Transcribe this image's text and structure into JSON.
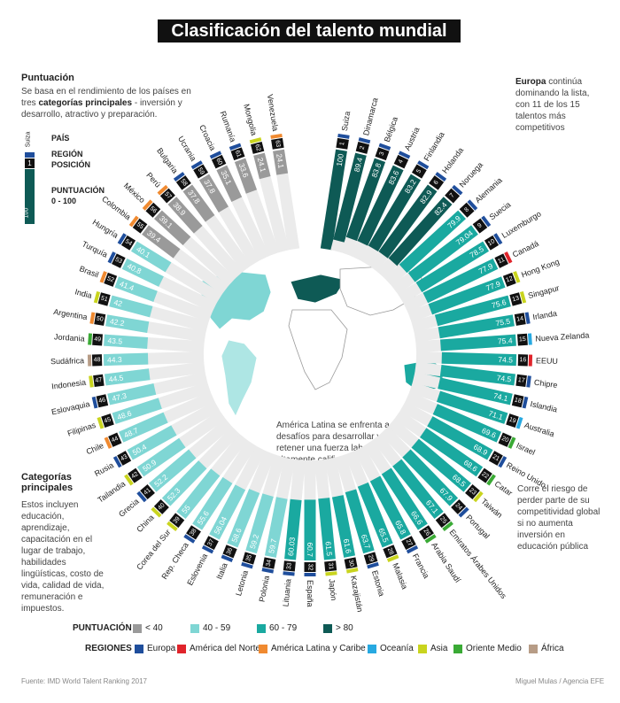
{
  "title": "Clasificación del talento mundial",
  "intro": {
    "heading": "Puntuación",
    "text_a": "Se basa en el rendimiento de los países en tres",
    "text_b": "categorías principales",
    "text_c": "- inversión y desarrollo, atractivo y preparación."
  },
  "key": {
    "country": "Suiza",
    "pais_label": "PAÍS",
    "region_label": "REGIÓN",
    "position": "1",
    "position_label": "POSICIÓN",
    "score": "100",
    "score_label_1": "PUNTUACIÓN",
    "score_label_2": "0 - 100"
  },
  "europa_note": {
    "bold": "Europa",
    "rest": "continúa dominando la lista, con 11 de los 15 talentos más competitivos"
  },
  "latam_note": "América Latina se enfrenta a desafíos para desarrollar y retener una fuerza laboral altamente calificada",
  "risk_note": "Corre el riesgo de perder parte de su competitividad global si no aumenta inversión en educación pública",
  "categories_note": {
    "heading": "Categorías principales",
    "text": "Estos incluyen educación, aprendizaje, capacitación en el lugar de trabajo, habilidades lingüísticas, costo de vida, calidad de vida, remuneración e impuestos."
  },
  "score_legend": {
    "label": "PUNTUACIÓN",
    "items": [
      {
        "label": "< 40",
        "color": "#9a9a9a"
      },
      {
        "label": "40 - 59",
        "color": "#7fd6d4"
      },
      {
        "label": "60 - 79",
        "color": "#1aa9a0"
      },
      {
        "label": "> 80",
        "color": "#0e5a55"
      }
    ]
  },
  "region_legend": {
    "label": "REGIONES",
    "items": [
      {
        "label": "Europa",
        "color": "#1f4e9c"
      },
      {
        "label": "América del Norte",
        "color": "#e0242b"
      },
      {
        "label": "América Latina y Caribe",
        "color": "#f08a30"
      },
      {
        "label": "Oceanía",
        "color": "#27a9e1"
      },
      {
        "label": "Asia",
        "color": "#c9d41e"
      },
      {
        "label": "Oriente Medio",
        "color": "#3aaa35"
      },
      {
        "label": "África",
        "color": "#b79c86"
      }
    ]
  },
  "footer_source": "Fuente: IMD World Talent Ranking 2017",
  "footer_credit": "Miguel Mulas / Agencia EFE",
  "chart_data": {
    "type": "bar",
    "layout": "radial",
    "value_range": [
      0,
      100
    ],
    "series": [
      {
        "rank": "1",
        "country": "Suiza",
        "value": 100,
        "region": "Europa"
      },
      {
        "rank": "2",
        "country": "Dinamarca",
        "value": 89.4,
        "region": "Europa"
      },
      {
        "rank": "3",
        "country": "Bélgica",
        "value": 83.8,
        "region": "Europa"
      },
      {
        "rank": "4",
        "country": "Austria",
        "value": 83.6,
        "region": "Europa"
      },
      {
        "rank": "5",
        "country": "Finlandia",
        "value": 83.2,
        "region": "Europa"
      },
      {
        "rank": "6",
        "country": "Holanda",
        "value": 82.9,
        "region": "Europa"
      },
      {
        "rank": "7",
        "country": "Noruega",
        "value": 82.4,
        "region": "Europa"
      },
      {
        "rank": "8",
        "country": "Alemania",
        "value": 79.9,
        "region": "Europa"
      },
      {
        "rank": "9",
        "country": "Suecia",
        "value": 79.04,
        "region": "Europa"
      },
      {
        "rank": "10",
        "country": "Luxemburgo",
        "value": 78.5,
        "region": "Europa"
      },
      {
        "rank": "11",
        "country": "Canadá",
        "value": 77.9,
        "region": "América del Norte"
      },
      {
        "rank": "12",
        "country": "Hong Kong",
        "value": 77.9,
        "region": "Asia"
      },
      {
        "rank": "13",
        "country": "Singapur",
        "value": 75.6,
        "region": "Asia"
      },
      {
        "rank": "14",
        "country": "Irlanda",
        "value": 75.5,
        "region": "Europa"
      },
      {
        "rank": "15",
        "country": "Nueva Zelanda",
        "value": 75.4,
        "region": "Oceanía"
      },
      {
        "rank": "16",
        "country": "EEUU",
        "value": 74.5,
        "region": "América del Norte"
      },
      {
        "rank": "17",
        "country": "Chipre",
        "value": 74.5,
        "region": "Europa"
      },
      {
        "rank": "18",
        "country": "Islandia",
        "value": 74.1,
        "region": "Europa"
      },
      {
        "rank": "19",
        "country": "Australia",
        "value": 71.1,
        "region": "Oceanía"
      },
      {
        "rank": "20",
        "country": "Israel",
        "value": 69.6,
        "region": "Oriente Medio"
      },
      {
        "rank": "21",
        "country": "Reino Unido",
        "value": 68.9,
        "region": "Europa"
      },
      {
        "rank": "22",
        "country": "Catar",
        "value": 68.6,
        "region": "Oriente Medio"
      },
      {
        "rank": "23",
        "country": "Taiwán",
        "value": 68.5,
        "region": "Asia"
      },
      {
        "rank": "24",
        "country": "Portugal",
        "value": 67.9,
        "region": "Europa"
      },
      {
        "rank": "25",
        "country": "Emiratos Árabes Unidos",
        "value": 67.1,
        "region": "Oriente Medio"
      },
      {
        "rank": "26",
        "country": "Arabia Saudí",
        "value": 66.6,
        "region": "Oriente Medio"
      },
      {
        "rank": "27",
        "country": "Francia",
        "value": 65.8,
        "region": "Europa"
      },
      {
        "rank": "28",
        "country": "Malasia",
        "value": 65.5,
        "region": "Asia"
      },
      {
        "rank": "29",
        "country": "Estonia",
        "value": 63.7,
        "region": "Europa"
      },
      {
        "rank": "30",
        "country": "Kazajistán",
        "value": 61.6,
        "region": "Asia"
      },
      {
        "rank": "31",
        "country": "Japón",
        "value": 61.5,
        "region": "Asia"
      },
      {
        "rank": "32",
        "country": "España",
        "value": 60.7,
        "region": "Europa"
      },
      {
        "rank": "33",
        "country": "Lituania",
        "value": 60.03,
        "region": "Europa"
      },
      {
        "rank": "34",
        "country": "Polonia",
        "value": 59.7,
        "region": "Europa"
      },
      {
        "rank": "35",
        "country": "Letonia",
        "value": 59.2,
        "region": "Europa"
      },
      {
        "rank": "36",
        "country": "Italia",
        "value": 58.6,
        "region": "Europa"
      },
      {
        "rank": "37",
        "country": "Eslovenia",
        "value": 56.04,
        "region": "Europa"
      },
      {
        "rank": "38",
        "country": "Rep. Checa",
        "value": 55.6,
        "region": "Europa"
      },
      {
        "rank": "39",
        "country": "Corea del Sur",
        "value": 55,
        "region": "Asia"
      },
      {
        "rank": "40",
        "country": "China",
        "value": 52.3,
        "region": "Asia"
      },
      {
        "rank": "41",
        "country": "Grecia",
        "value": 52.2,
        "region": "Europa"
      },
      {
        "rank": "42",
        "country": "Tailandia",
        "value": 50.9,
        "region": "Asia"
      },
      {
        "rank": "43",
        "country": "Rusia",
        "value": 50.4,
        "region": "Europa"
      },
      {
        "rank": "44",
        "country": "Chile",
        "value": 48.7,
        "region": "América Latina y Caribe"
      },
      {
        "rank": "45",
        "country": "Filipinas",
        "value": 48.6,
        "region": "Asia"
      },
      {
        "rank": "46",
        "country": "Eslovaquia",
        "value": 47.3,
        "region": "Europa"
      },
      {
        "rank": "47",
        "country": "Indonesia",
        "value": 44.5,
        "region": "Asia"
      },
      {
        "rank": "48",
        "country": "Sudáfrica",
        "value": 44.3,
        "region": "África"
      },
      {
        "rank": "49",
        "country": "Jordania",
        "value": 43.5,
        "region": "Oriente Medio"
      },
      {
        "rank": "50",
        "country": "Argentina",
        "value": 42.2,
        "region": "América Latina y Caribe"
      },
      {
        "rank": "51",
        "country": "India",
        "value": 42,
        "region": "Asia"
      },
      {
        "rank": "52",
        "country": "Brasil",
        "value": 41.4,
        "region": "América Latina y Caribe"
      },
      {
        "rank": "53",
        "country": "Turquía",
        "value": 40.8,
        "region": "Europa"
      },
      {
        "rank": "54",
        "country": "Hungría",
        "value": 40.1,
        "region": "Europa"
      },
      {
        "rank": "55",
        "country": "Colombia",
        "value": 39.4,
        "region": "América Latina y Caribe"
      },
      {
        "rank": "56",
        "country": "México",
        "value": 39.1,
        "region": "América Latina y Caribe"
      },
      {
        "rank": "57",
        "country": "Perú",
        "value": 38.9,
        "region": "América Latina y Caribe"
      },
      {
        "rank": "58",
        "country": "Bulgaria",
        "value": 37.8,
        "region": "Europa"
      },
      {
        "rank": "59",
        "country": "Ucrania",
        "value": 37.8,
        "region": "Europa"
      },
      {
        "rank": "60",
        "country": "Croacia",
        "value": 35.1,
        "region": "Europa"
      },
      {
        "rank": "61",
        "country": "Rumanía",
        "value": 33.6,
        "region": "Europa"
      },
      {
        "rank": "62",
        "country": "Mongolia",
        "value": 24.1,
        "region": "Asia"
      },
      {
        "rank": "63",
        "country": "Venezuela",
        "value": 24.1,
        "region": "América Latina y Caribe"
      }
    ]
  }
}
